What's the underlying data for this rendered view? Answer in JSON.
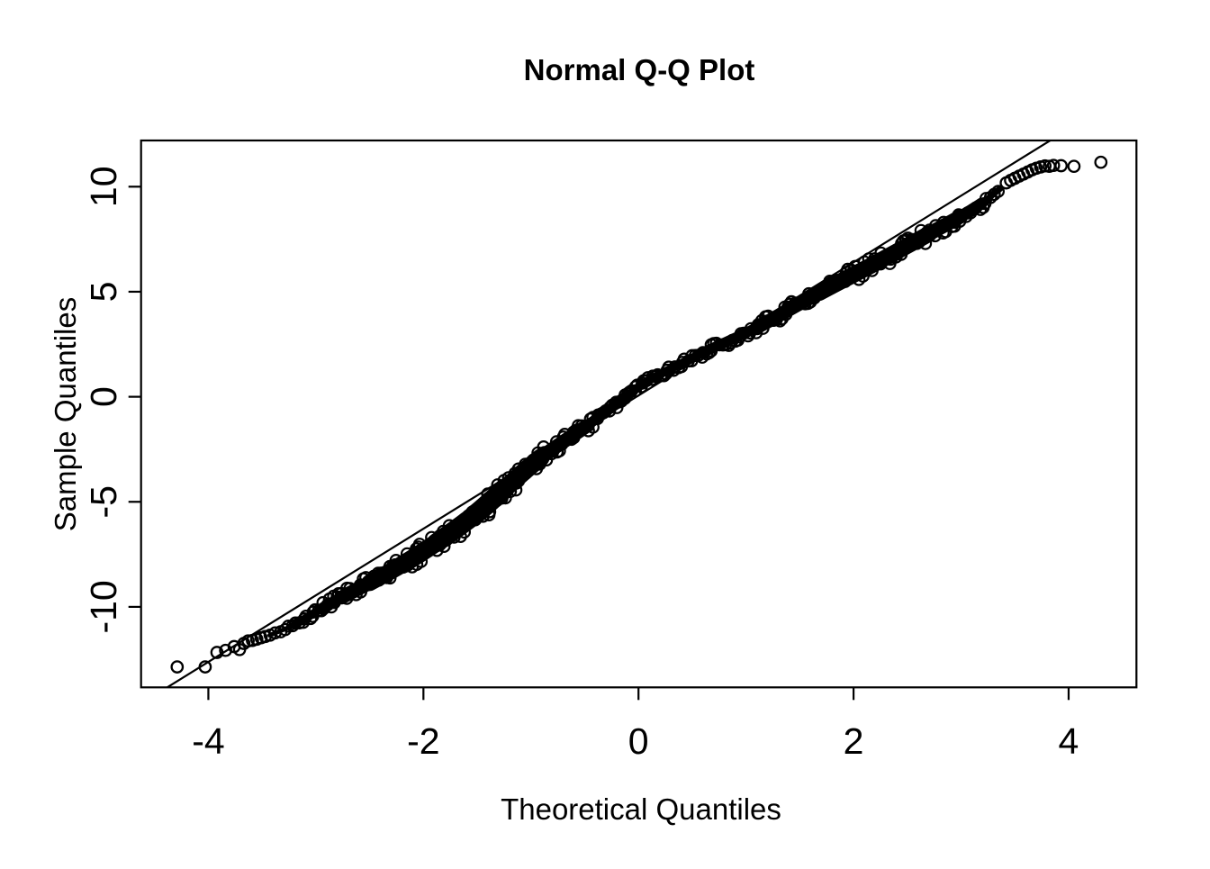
{
  "chart_data": {
    "type": "scatter",
    "variant": "normal-qq-plot",
    "title": "Normal Q-Q Plot",
    "xlabel": "Theoretical Quantiles",
    "ylabel": "Sample Quantiles",
    "x_ticks": [
      -4,
      -2,
      0,
      2,
      4
    ],
    "y_ticks": [
      -10,
      -5,
      0,
      5,
      10
    ],
    "x_range": [
      -4.63,
      4.63
    ],
    "y_range": [
      -13.83,
      12.2
    ],
    "grid": false,
    "legend": null,
    "marker": "open-circle",
    "colors": {
      "points": "#000000",
      "reference_line": "#000000",
      "background": "#ffffff",
      "box": "#000000"
    },
    "reference_line": {
      "slope": 3.17,
      "intercept": 0.06
    },
    "band_center": [
      {
        "t": -3.43,
        "s": -11.35,
        "w": 0.65
      },
      {
        "t": -3.2,
        "s": -10.85,
        "w": 0.85
      },
      {
        "t": -2.95,
        "s": -10.1,
        "w": 1.05
      },
      {
        "t": -2.76,
        "s": -9.55,
        "w": 1.15
      },
      {
        "t": -2.5,
        "s": -8.85,
        "w": 1.3
      },
      {
        "t": -2.2,
        "s": -8.0,
        "w": 1.4
      },
      {
        "t": -1.88,
        "s": -6.95,
        "w": 1.42
      },
      {
        "t": -1.53,
        "s": -5.65,
        "w": 1.5
      },
      {
        "t": -1.25,
        "s": -4.4,
        "w": 1.5
      },
      {
        "t": -0.91,
        "s": -2.9,
        "w": 1.33
      },
      {
        "t": -0.5,
        "s": -1.45,
        "w": 1.11
      },
      {
        "t": -0.13,
        "s": -0.05,
        "w": 0.99
      },
      {
        "t": 0.09,
        "s": 0.75,
        "w": 0.94
      },
      {
        "t": 0.6,
        "s": 2.1,
        "w": 0.99
      },
      {
        "t": 1.1,
        "s": 3.3,
        "w": 1.11
      },
      {
        "t": 1.68,
        "s": 4.95,
        "w": 1.3
      },
      {
        "t": 2.2,
        "s": 6.35,
        "w": 1.37
      },
      {
        "t": 2.7,
        "s": 7.75,
        "w": 1.29
      },
      {
        "t": 3.0,
        "s": 8.6,
        "w": 1.2
      },
      {
        "t": 3.19,
        "s": 9.2,
        "w": 1.03
      },
      {
        "t": 3.36,
        "s": 9.9,
        "w": 0.69
      }
    ],
    "lower_tail_points": [
      [
        -4.29,
        -12.86
      ],
      [
        -4.03,
        -12.86
      ],
      [
        -3.92,
        -12.17
      ],
      [
        -3.84,
        -12.07
      ],
      [
        -3.76,
        -11.89
      ],
      [
        -3.71,
        -12.03
      ],
      [
        -3.67,
        -11.74
      ],
      [
        -3.63,
        -11.62
      ],
      [
        -3.59,
        -11.6
      ],
      [
        -3.55,
        -11.54
      ],
      [
        -3.51,
        -11.47
      ],
      [
        -3.47,
        -11.41
      ]
    ],
    "upper_tail_points": [
      [
        3.42,
        10.18
      ],
      [
        3.46,
        10.3
      ],
      [
        3.5,
        10.4
      ],
      [
        3.54,
        10.5
      ],
      [
        3.58,
        10.6
      ],
      [
        3.62,
        10.7
      ],
      [
        3.66,
        10.8
      ],
      [
        3.7,
        10.88
      ],
      [
        3.74,
        10.94
      ],
      [
        3.78,
        10.99
      ],
      [
        3.82,
        10.97
      ],
      [
        3.86,
        11.01
      ],
      [
        3.93,
        11.0
      ],
      [
        4.05,
        10.97
      ],
      [
        4.3,
        11.16
      ]
    ]
  }
}
